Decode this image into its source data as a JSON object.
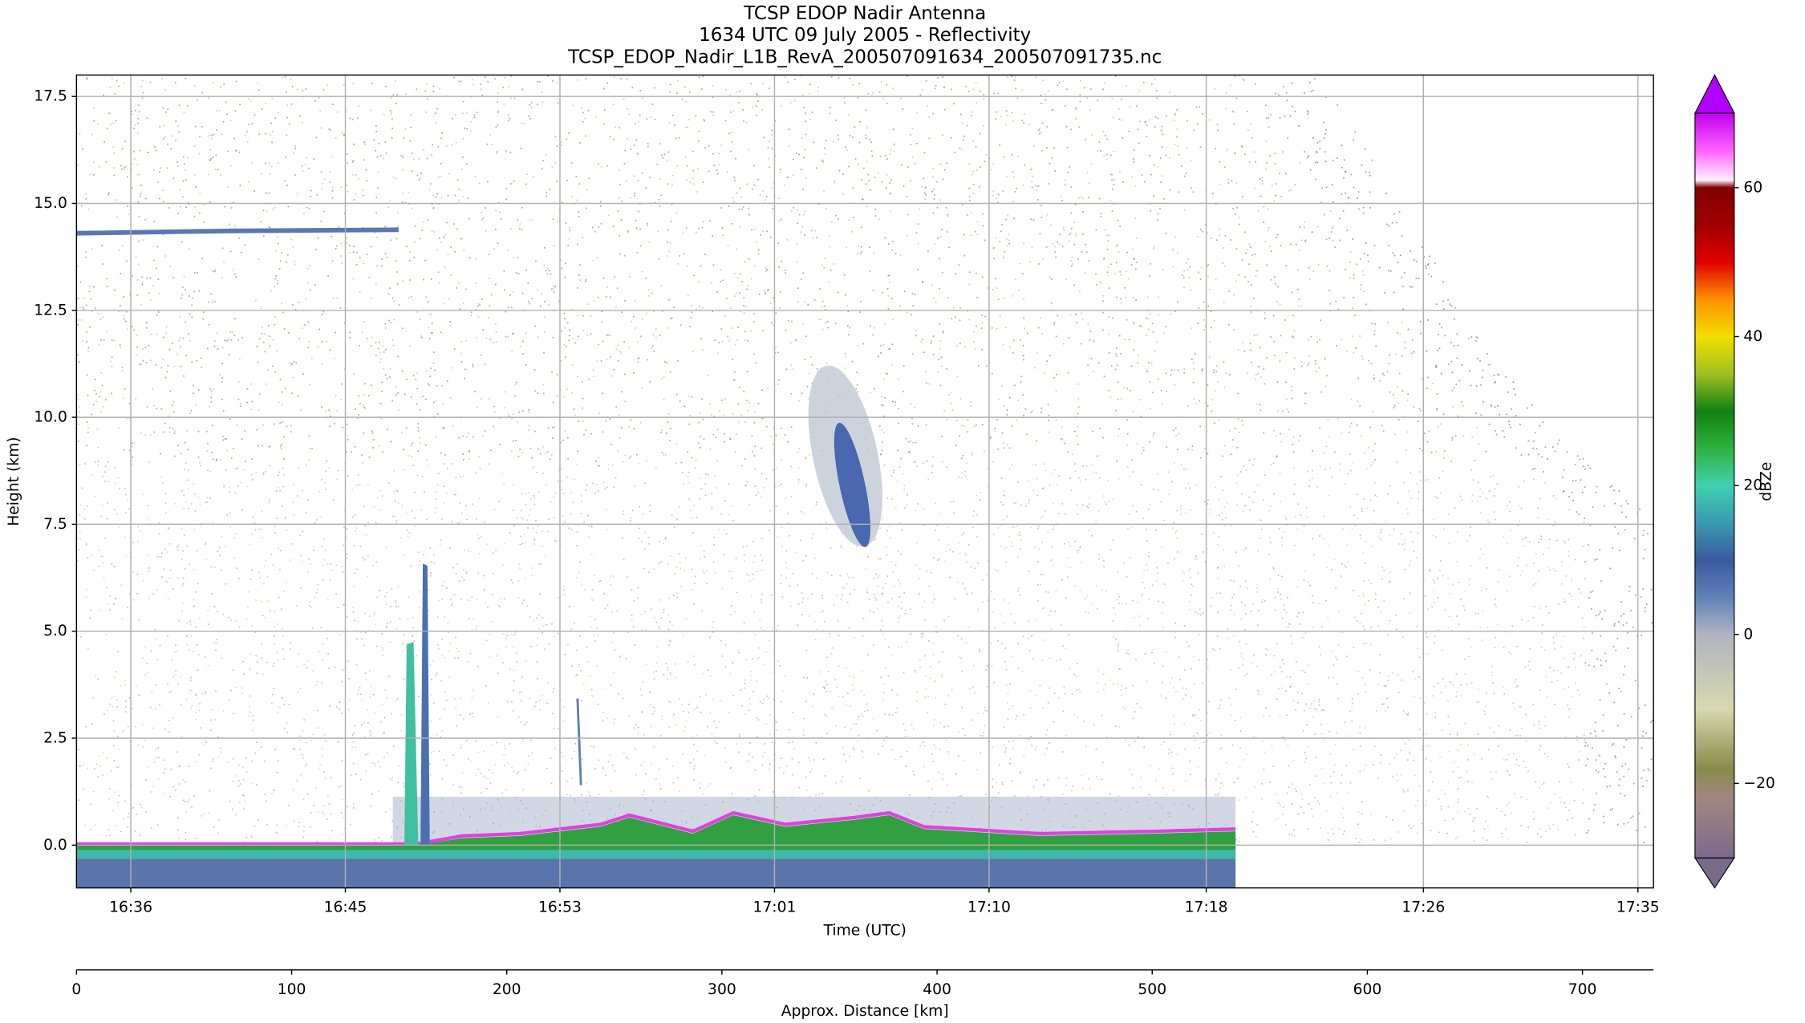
{
  "chart_data": {
    "type": "heatmap",
    "title": "TCSP EDOP Nadir Antenna",
    "subtitle": "1634 UTC 09 July 2005 - Reflectivity",
    "source_file": "TCSP_EDOP_Nadir_L1B_RevA_200507091634_200507091735.nc",
    "xlabel": "Time (UTC)",
    "ylabel": "Height (km)",
    "xlim": [
      34,
      95
    ],
    "xticks": [
      {
        "value": 36.1,
        "label": "16:36"
      },
      {
        "value": 44.4,
        "label": "16:45"
      },
      {
        "value": 52.7,
        "label": "16:53"
      },
      {
        "value": 61.0,
        "label": "17:01"
      },
      {
        "value": 69.3,
        "label": "17:10"
      },
      {
        "value": 77.7,
        "label": "17:18"
      },
      {
        "value": 86.1,
        "label": "17:26"
      },
      {
        "value": 94.4,
        "label": "17:35"
      }
    ],
    "ylim": [
      -1,
      18
    ],
    "yticks": [
      {
        "value": 0,
        "label": "0.0"
      },
      {
        "value": 2.5,
        "label": "2.5"
      },
      {
        "value": 5,
        "label": "5.0"
      },
      {
        "value": 7.5,
        "label": "7.5"
      },
      {
        "value": 10,
        "label": "10.0"
      },
      {
        "value": 12.5,
        "label": "12.5"
      },
      {
        "value": 15,
        "label": "15.0"
      },
      {
        "value": 17.5,
        "label": "17.5"
      }
    ],
    "grid": true,
    "distance_axis": {
      "label": "Approx. Distance [km]",
      "xlim": [
        0,
        733
      ],
      "xticks": [
        0,
        100,
        200,
        300,
        400,
        500,
        600,
        700
      ]
    },
    "colorbar": {
      "label": "dBZe",
      "clim": [
        -30,
        70
      ],
      "ticks": [
        {
          "value": -20,
          "label": "−20"
        },
        0,
        20,
        40,
        60
      ],
      "under_color": "#7a6a8a",
      "over_color": "#b000ff",
      "stops": [
        {
          "value": -30,
          "color": "#7c6a8c"
        },
        {
          "value": -22,
          "color": "#a08880"
        },
        {
          "value": -18,
          "color": "#8a8a4a"
        },
        {
          "value": -10,
          "color": "#d8d8b0"
        },
        {
          "value": 0,
          "color": "#b0b4c0"
        },
        {
          "value": 5,
          "color": "#6080b8"
        },
        {
          "value": 10,
          "color": "#3a5aa0"
        },
        {
          "value": 15,
          "color": "#3a9ab0"
        },
        {
          "value": 20,
          "color": "#40d0b0"
        },
        {
          "value": 25,
          "color": "#30b040"
        },
        {
          "value": 30,
          "color": "#108010"
        },
        {
          "value": 35,
          "color": "#a0c020"
        },
        {
          "value": 40,
          "color": "#f0e000"
        },
        {
          "value": 45,
          "color": "#ff9000"
        },
        {
          "value": 50,
          "color": "#e00000"
        },
        {
          "value": 55,
          "color": "#a00000"
        },
        {
          "value": 60,
          "color": "#800000"
        },
        {
          "value": 61,
          "color": "#fff0ff"
        },
        {
          "value": 65,
          "color": "#ff60ff"
        },
        {
          "value": 70,
          "color": "#c000f0"
        }
      ]
    }
  }
}
